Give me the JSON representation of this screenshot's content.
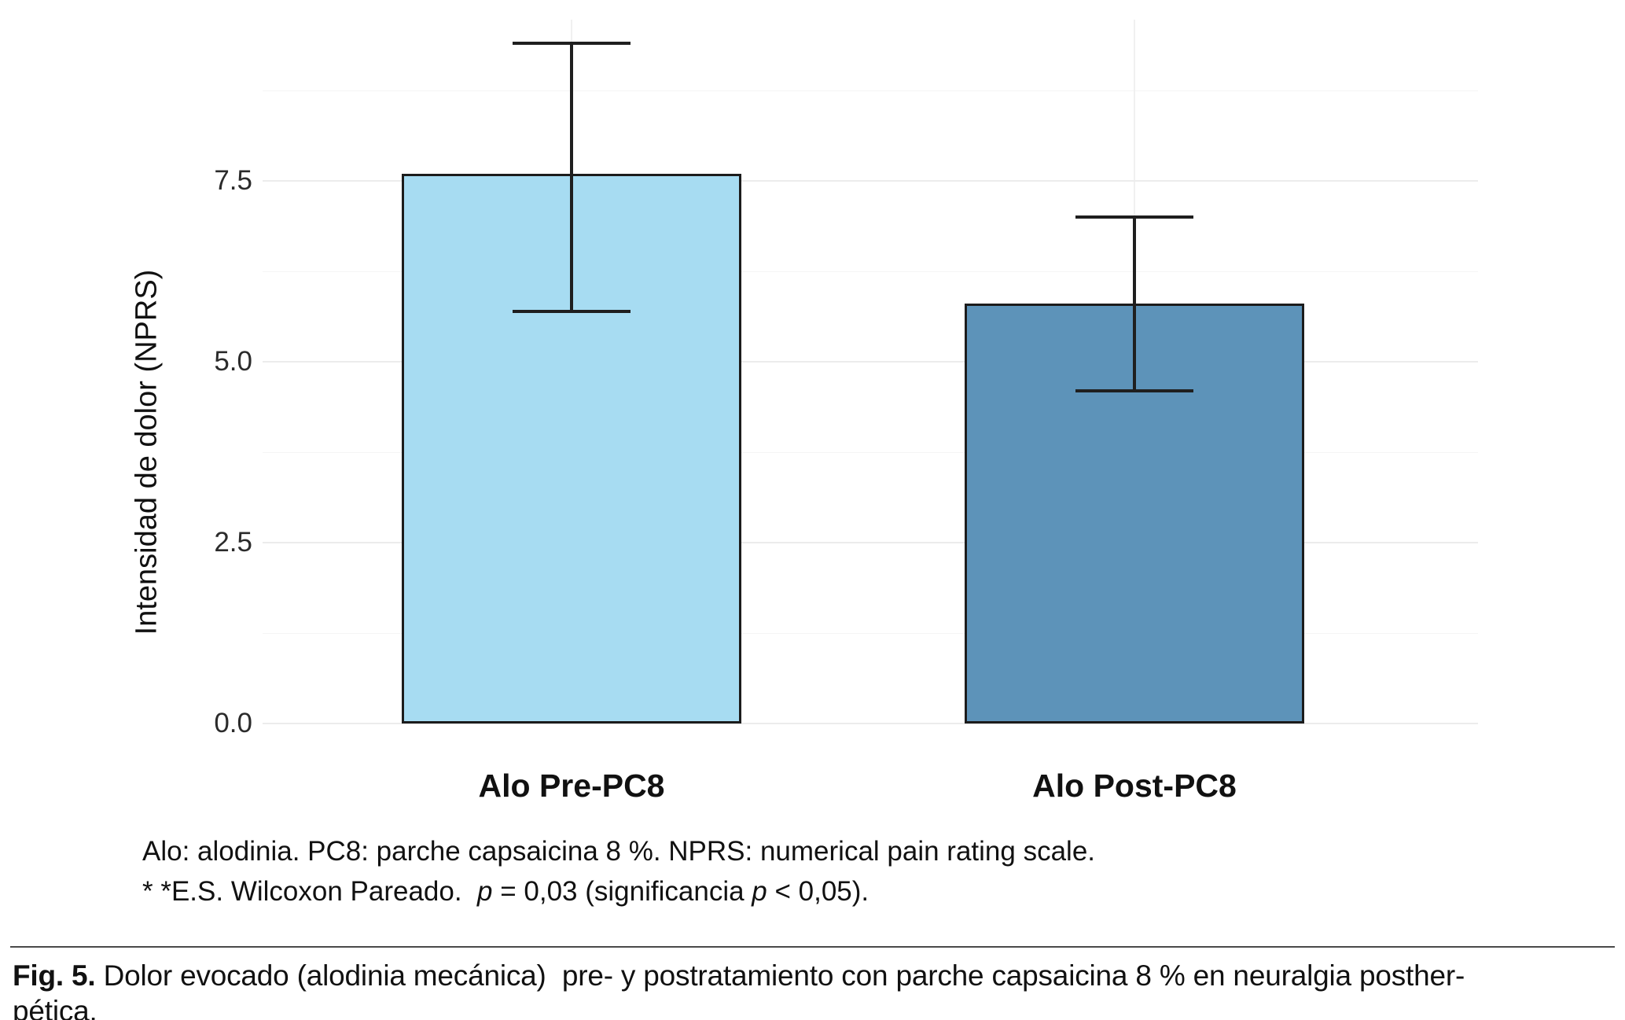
{
  "chart_data": {
    "type": "bar",
    "title": "",
    "xlabel": "",
    "ylabel": "Intensidad de dolor (NPRS)",
    "categories": [
      "Alo Pre-PC8",
      "Alo Post-PC8"
    ],
    "values": [
      7.6,
      5.8
    ],
    "error_bars": [
      {
        "low": 5.7,
        "high": 9.4
      },
      {
        "low": 4.6,
        "high": 7.0
      }
    ],
    "ylim": [
      0,
      9.7
    ],
    "yticks": [
      0,
      2.5,
      5,
      7.5
    ],
    "ytick_labels": [
      "0.0",
      "2.5",
      "5.0",
      "7.5"
    ],
    "yticks_minor": [
      1.25,
      3.75,
      6.25,
      8.75
    ],
    "grid": "horizontal major+minor, faint vertical at category centers",
    "legend": "none",
    "bar_colors": [
      "#a7dcf2",
      "#5d93b9"
    ],
    "bar_border_color": "#1c1c1c",
    "error_bar_color": "#1f1f1f"
  },
  "figure": {
    "footnotes": {
      "line1": "Alo: alodinia. PC8: parche capsaicina 8 %. NPRS: numerical pain rating scale.",
      "line2": {
        "part1": "* *E.S. Wilcoxon Pareado.  ",
        "p1": "p",
        "part2": " = 0,03 (significancia ",
        "p2": "p",
        "part3": " < 0,05)."
      }
    },
    "caption": {
      "label": "Fig. 5.",
      "line1_rest": " Dolor evocado (alodinia mecánica)  pre- y postratamiento con parche capsaicina 8 % en neuralgia posther-",
      "line2": "pética."
    }
  }
}
